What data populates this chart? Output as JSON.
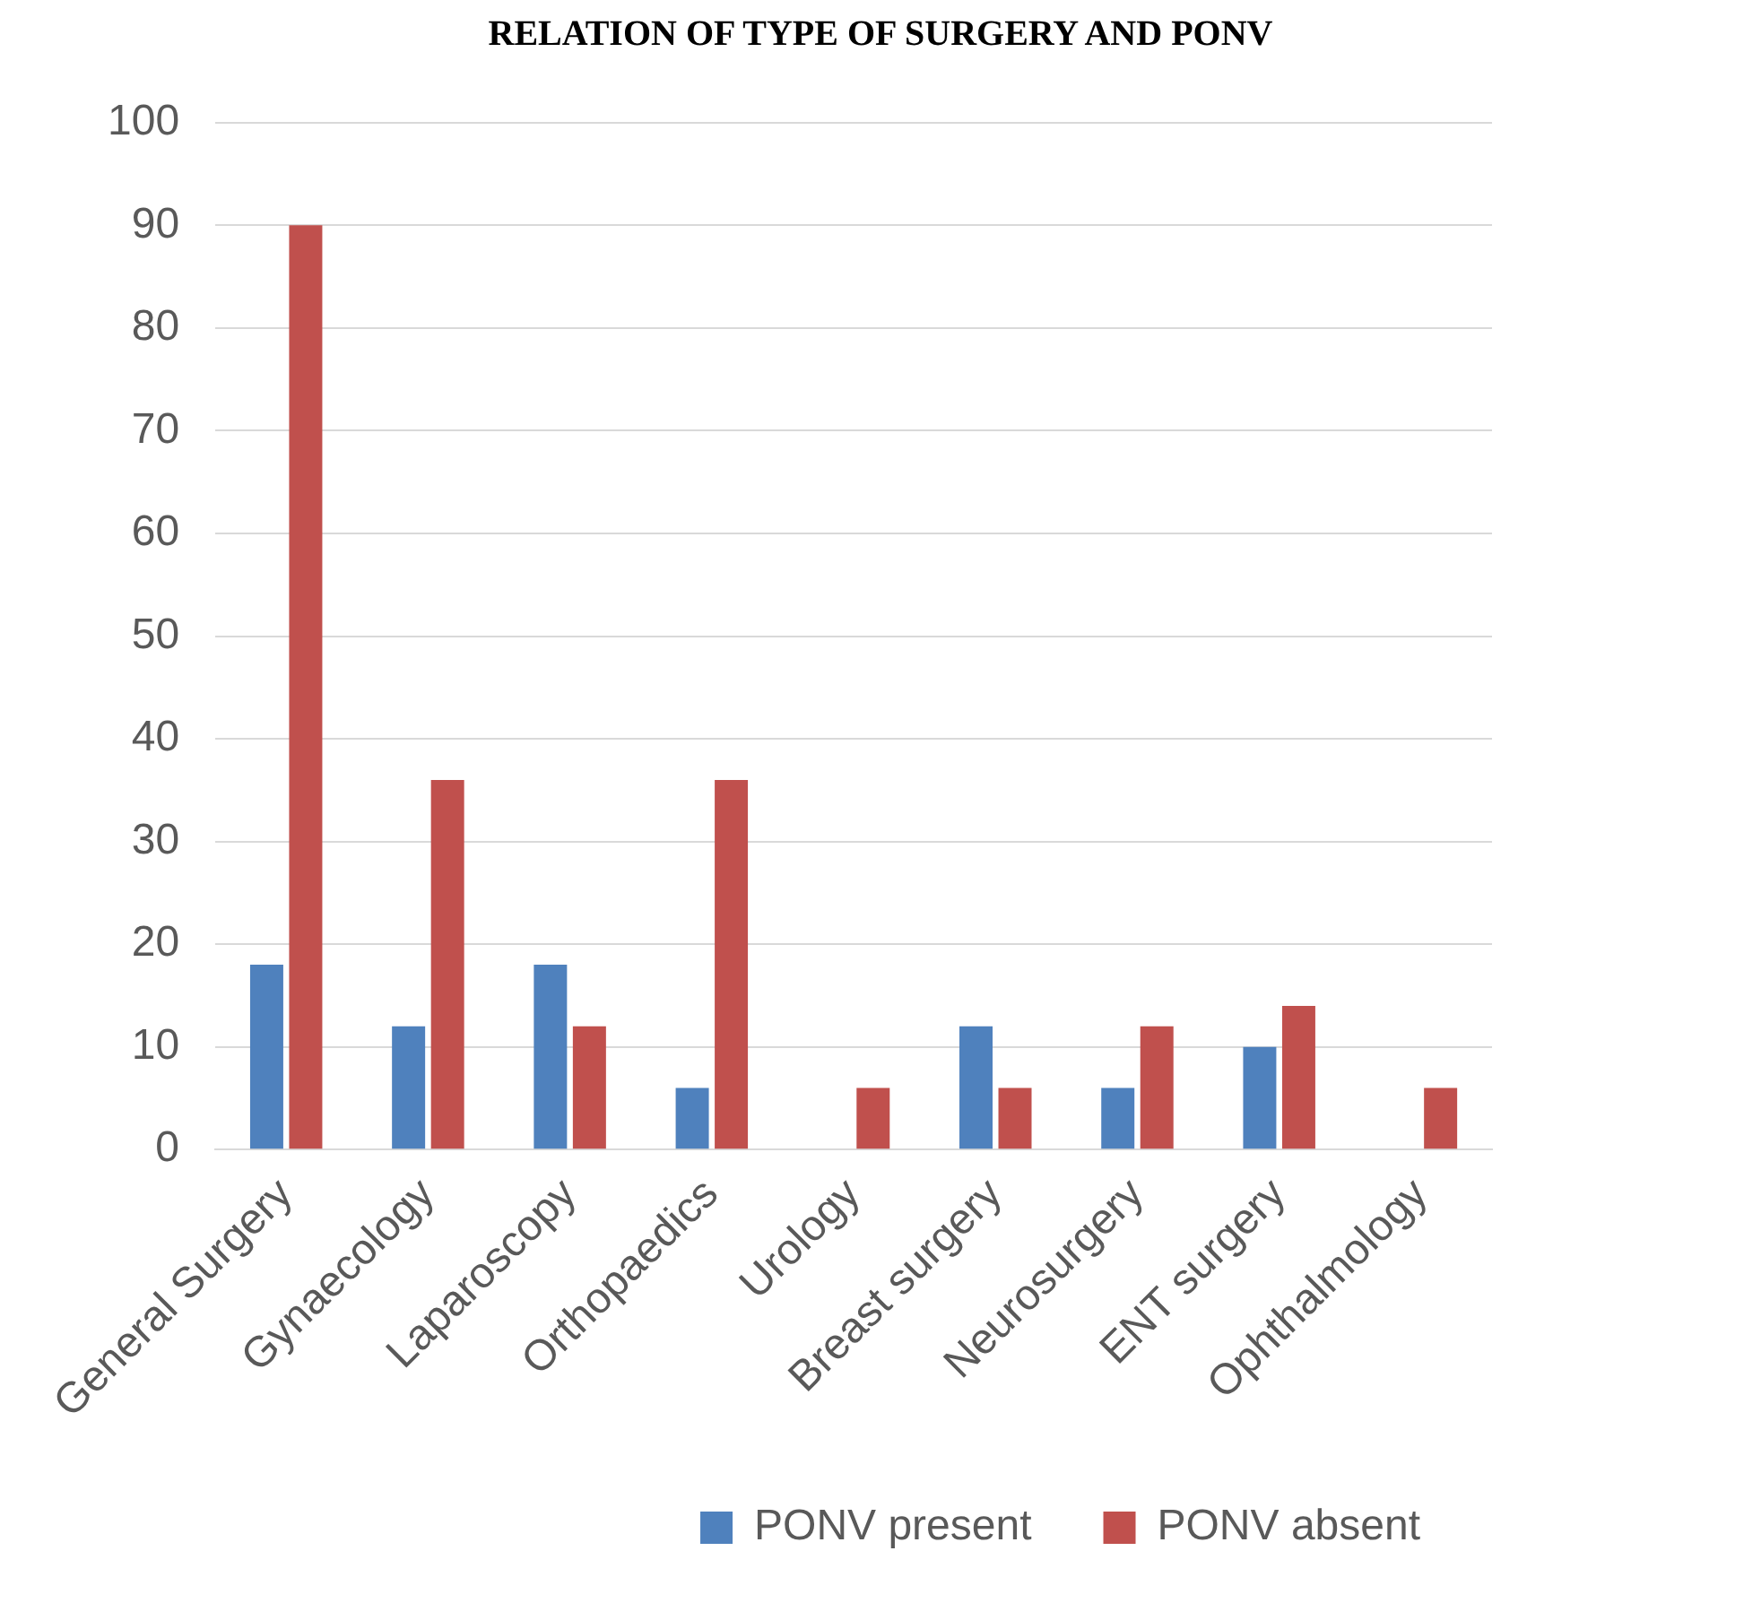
{
  "chart_data": {
    "type": "bar",
    "title": "RELATION OF TYPE OF SURGERY AND PONV",
    "categories": [
      "General Surgery",
      "Gynaecology",
      "Laparoscopy",
      "Orthopaedics",
      "Urology",
      "Breast surgery",
      "Neurosurgery",
      "ENT surgery",
      "Ophthalmology"
    ],
    "series": [
      {
        "name": "PONV present",
        "color": "#4f81bd",
        "values": [
          18,
          12,
          18,
          6,
          0,
          12,
          6,
          10,
          0
        ]
      },
      {
        "name": "PONV absent",
        "color": "#c0504d",
        "values": [
          90,
          36,
          12,
          36,
          6,
          6,
          12,
          14,
          6
        ]
      }
    ],
    "ylim": [
      0,
      100
    ],
    "yticks": [
      0,
      10,
      20,
      30,
      40,
      50,
      60,
      70,
      80,
      90,
      100
    ],
    "grid": "y",
    "legend": "bottom"
  }
}
